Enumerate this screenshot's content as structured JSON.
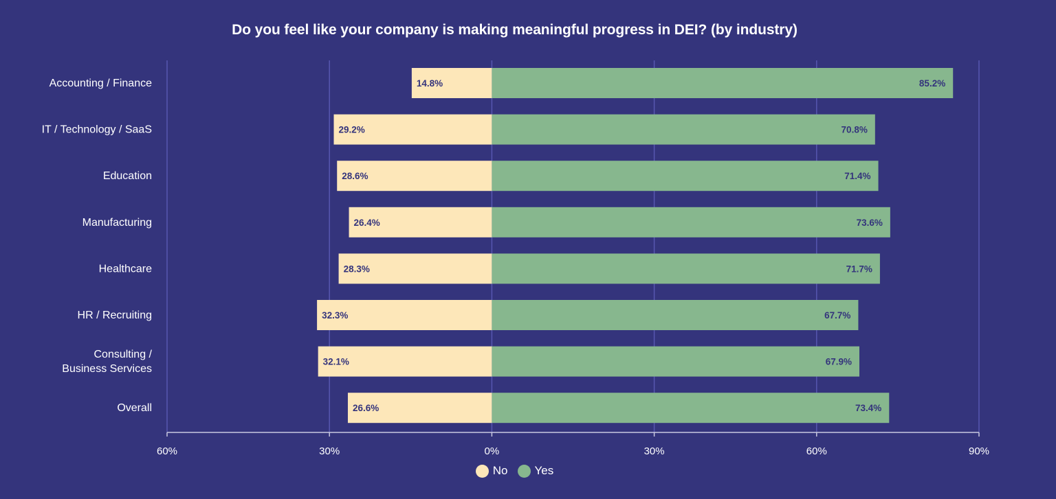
{
  "chart_data": {
    "type": "bar",
    "orientation": "horizontal",
    "stacked": "diverging",
    "title": "Do you feel like your company is making meaningful progress in DEI? (by industry)",
    "categories": [
      "Accounting / Finance",
      "IT / Technology / SaaS",
      "Education",
      "Manufacturing",
      "Healthcare",
      "HR / Recruiting",
      "Consulting / Business Services",
      "Overall"
    ],
    "category_lines": [
      [
        "Accounting / Finance"
      ],
      [
        "IT / Technology / SaaS"
      ],
      [
        "Education"
      ],
      [
        "Manufacturing"
      ],
      [
        "Healthcare"
      ],
      [
        "HR / Recruiting"
      ],
      [
        "Consulting /",
        "Business Services"
      ],
      [
        "Overall"
      ]
    ],
    "series": [
      {
        "name": "No",
        "color": "#fde7b9",
        "direction": "left",
        "values": [
          14.8,
          29.2,
          28.6,
          26.4,
          28.3,
          32.3,
          32.1,
          26.6
        ],
        "labels": [
          "14.8%",
          "29.2%",
          "28.6%",
          "26.4%",
          "28.3%",
          "32.3%",
          "32.1%",
          "26.6%"
        ]
      },
      {
        "name": "Yes",
        "color": "#87b78e",
        "direction": "right",
        "values": [
          85.2,
          70.8,
          71.4,
          73.6,
          71.7,
          67.7,
          67.9,
          73.4
        ],
        "labels": [
          "85.2%",
          "70.8%",
          "71.4%",
          "73.6%",
          "71.7%",
          "67.7%",
          "67.9%",
          "73.4%"
        ]
      }
    ],
    "xlim": [
      -60,
      90
    ],
    "xticks": [
      -60,
      -30,
      0,
      30,
      60,
      90
    ],
    "xtick_labels": [
      "60%",
      "30%",
      "0%",
      "30%",
      "60%",
      "90%"
    ],
    "grid": true,
    "legend": "bottom-center"
  },
  "colors": {
    "background": "#34347c",
    "gridline": "#5757b0",
    "axis": "#c8c8e0",
    "text": "#ffffff",
    "data_label": "#34347c"
  }
}
